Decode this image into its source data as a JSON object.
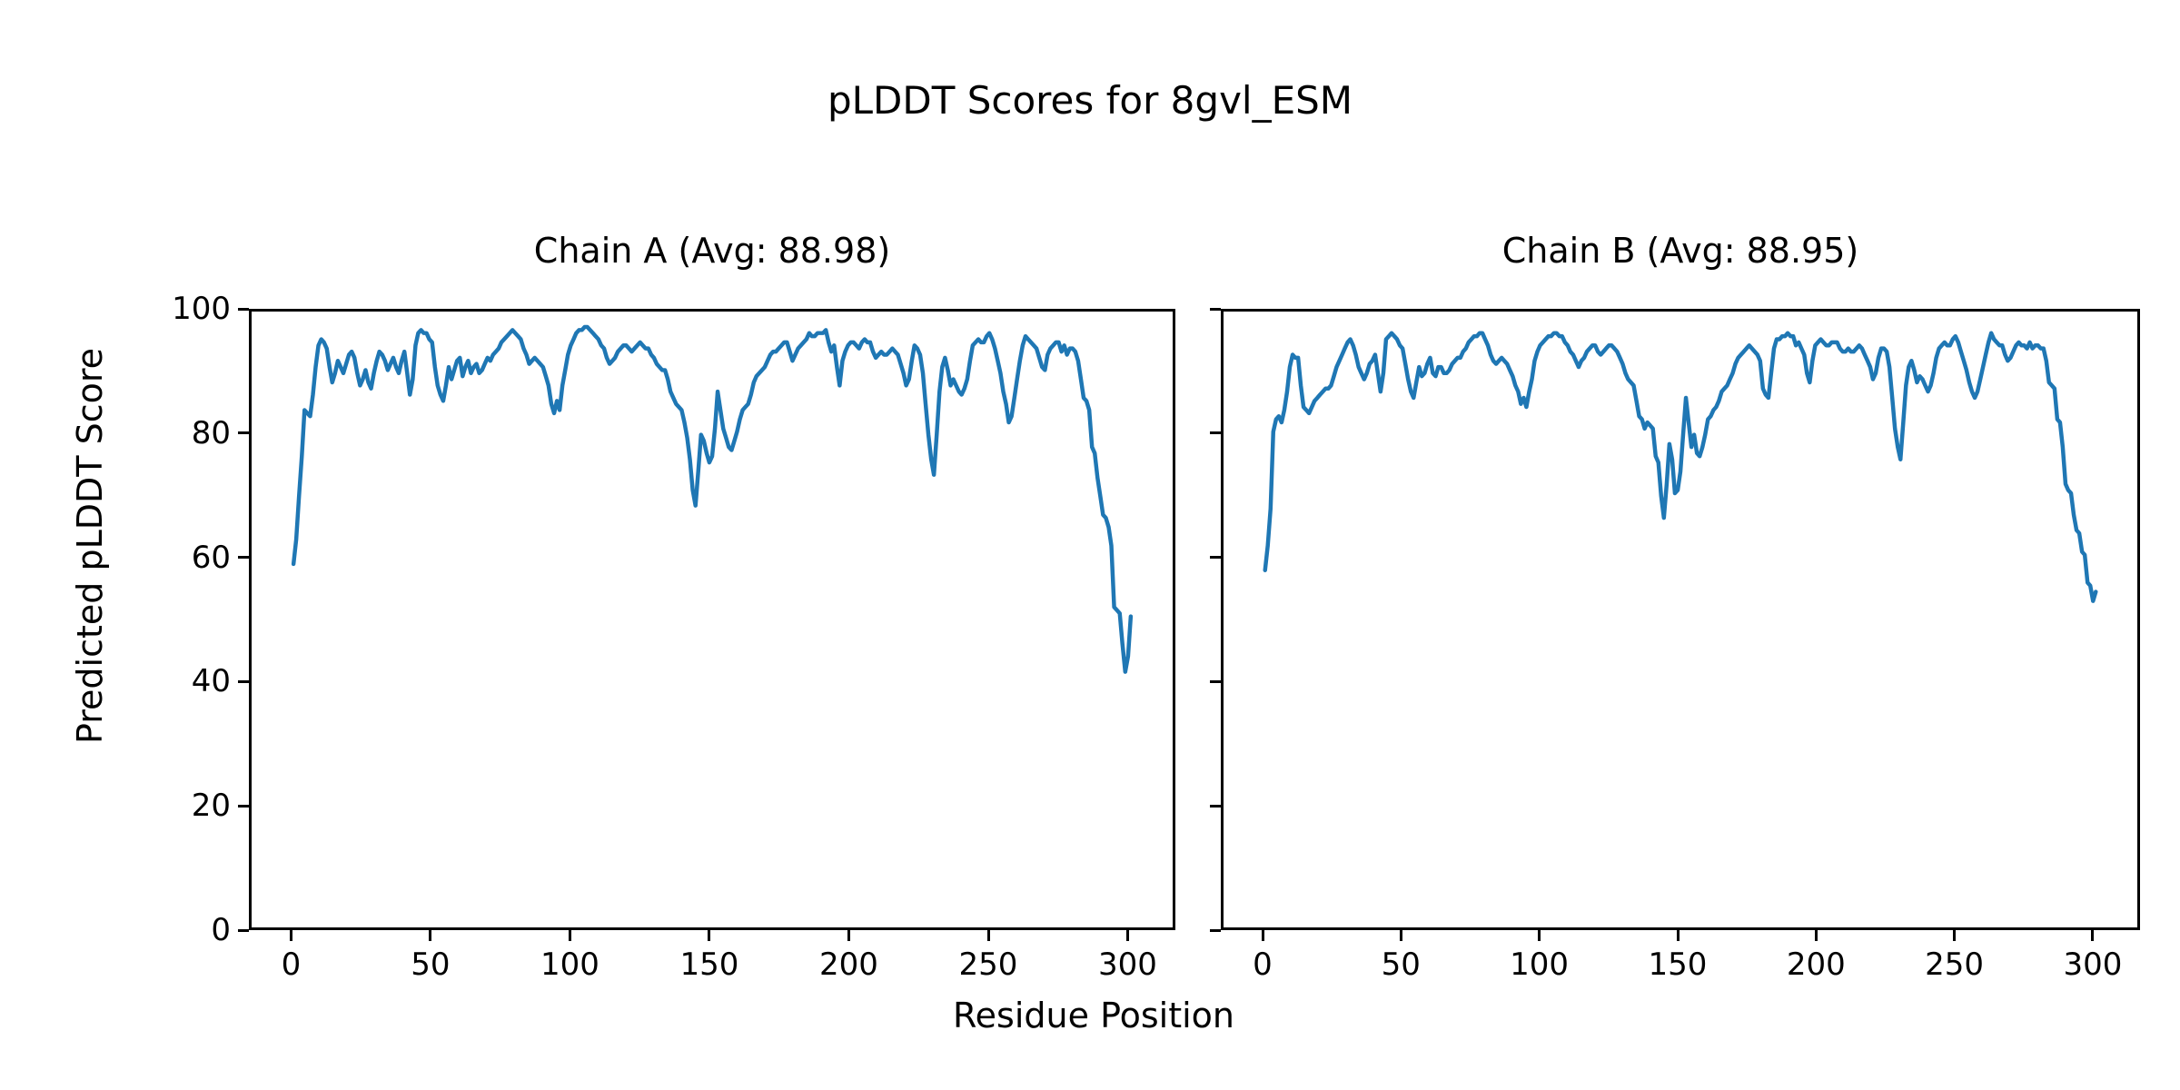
{
  "figure": {
    "suptitle": "pLDDT Scores for 8gvl_ESM",
    "xlabel": "Residue Position",
    "ylabel": "Predicted pLDDT Score",
    "background": "#ffffff",
    "text_color": "#000000",
    "line_color": "#1f77b4"
  },
  "chart_data": [
    {
      "type": "line",
      "title": "Chain A (Avg: 88.98)",
      "chain": "A",
      "avg": 88.98,
      "xlabel": "Residue Position",
      "ylabel": "Predicted pLDDT Score",
      "xticks": [
        0,
        50,
        100,
        150,
        200,
        250,
        300
      ],
      "yticks": [
        0,
        20,
        40,
        60,
        80,
        100
      ],
      "xlim": [
        -15.1,
        317.1
      ],
      "ylim": [
        0,
        100
      ],
      "grid": false,
      "legend": "none",
      "show_ytick_labels": true,
      "series": [
        {
          "name": "Chain A pLDDT",
          "color": "#1f77b4",
          "x_start": 0,
          "x_step": 1,
          "values": [
            59,
            63,
            70,
            76.5,
            84,
            83.5,
            83,
            86.5,
            91,
            94.5,
            95.5,
            95,
            94,
            91,
            88.5,
            90,
            92,
            91,
            90,
            91.5,
            93,
            93.5,
            92.5,
            90,
            88,
            89,
            90.5,
            88.5,
            87.5,
            90,
            92,
            93.5,
            93,
            92,
            90.5,
            91.5,
            92.5,
            91,
            90,
            92,
            93.5,
            90,
            86.5,
            89,
            94.5,
            96.5,
            97,
            96.5,
            96.5,
            95.5,
            95,
            91,
            88,
            86.5,
            85.5,
            88,
            91,
            89,
            90.5,
            92,
            92.5,
            89.5,
            91,
            92,
            90,
            91,
            91.5,
            90,
            90.5,
            91.5,
            92.5,
            92,
            93,
            93.5,
            94,
            95,
            95.5,
            96,
            96.5,
            97,
            96.5,
            96,
            95.5,
            94,
            93,
            91.5,
            92,
            92.5,
            92,
            91.5,
            91,
            89.5,
            88,
            85,
            83.5,
            85.5,
            84,
            88,
            90.5,
            93,
            94.5,
            95.5,
            96.5,
            97,
            97,
            97.5,
            97.5,
            97,
            96.5,
            96,
            95.5,
            94.5,
            94,
            92.5,
            91.5,
            92,
            92.5,
            93.5,
            94,
            94.5,
            94.5,
            94,
            93.5,
            94,
            94.5,
            95,
            94.5,
            94,
            94,
            93,
            92.5,
            91.5,
            91,
            90.5,
            90.5,
            89,
            87,
            86,
            85,
            84.5,
            84,
            82,
            79.5,
            76,
            71,
            68.5,
            74,
            80,
            79,
            77,
            75.5,
            76.5,
            81,
            87,
            84,
            81,
            79.5,
            78,
            77.5,
            79,
            80.5,
            82.5,
            84,
            84.5,
            85,
            86.5,
            88.5,
            89.5,
            90,
            90.5,
            91,
            92,
            93,
            93.5,
            93.5,
            94,
            94.5,
            95,
            95,
            93.5,
            92,
            93,
            94,
            94.5,
            95,
            95.5,
            96.5,
            96,
            96,
            96.5,
            96.5,
            96.5,
            97,
            95,
            93.5,
            94.5,
            91,
            88,
            92,
            93.5,
            94.5,
            95,
            95,
            94.5,
            94,
            95,
            95.5,
            95,
            95,
            93.5,
            92.5,
            93,
            93.5,
            93,
            93,
            93.5,
            94,
            93.5,
            93,
            91.5,
            90,
            88,
            89,
            92,
            94.5,
            94,
            93,
            90,
            85,
            80,
            76,
            73.5,
            80,
            87,
            91,
            92.5,
            90.5,
            88,
            89,
            88,
            87,
            86.5,
            87.5,
            89,
            92,
            94.5,
            95,
            95.5,
            95,
            95,
            96,
            96.5,
            95.5,
            94,
            92,
            90,
            87,
            85,
            82,
            83,
            86,
            89,
            92,
            94.5,
            96,
            95.5,
            95,
            94.5,
            94,
            92.5,
            91,
            90.5,
            93,
            94,
            94.5,
            95,
            95,
            93.5,
            94.5,
            93,
            94,
            94,
            93.5,
            92,
            89,
            86,
            85.5,
            84,
            78,
            77,
            73,
            70,
            67,
            66.5,
            65,
            62,
            52,
            51.5,
            51,
            46,
            41.5,
            44,
            50.5
          ]
        }
      ]
    },
    {
      "type": "line",
      "title": "Chain B (Avg: 88.95)",
      "chain": "B",
      "avg": 88.95,
      "xlabel": "Residue Position",
      "ylabel": "Predicted pLDDT Score",
      "xticks": [
        0,
        50,
        100,
        150,
        200,
        250,
        300
      ],
      "yticks": [
        0,
        20,
        40,
        60,
        80,
        100
      ],
      "xlim": [
        -15.1,
        317.1
      ],
      "ylim": [
        0,
        100
      ],
      "grid": false,
      "legend": "none",
      "show_ytick_labels": false,
      "series": [
        {
          "name": "Chain B pLDDT",
          "color": "#1f77b4",
          "x_start": 0,
          "x_step": 1,
          "values": [
            58,
            62,
            68,
            80.5,
            82.5,
            83,
            82,
            84,
            87,
            91,
            93,
            92.5,
            92.5,
            88,
            84.5,
            84,
            83.5,
            84.5,
            85.5,
            86,
            86.5,
            87,
            87.5,
            87.5,
            88,
            89.5,
            91,
            92,
            93,
            94,
            95,
            95.5,
            94.5,
            93,
            91,
            90,
            89,
            90,
            91.5,
            92,
            93,
            90,
            87,
            90,
            95.5,
            96,
            96.5,
            96,
            95.5,
            94.5,
            94,
            91.5,
            89,
            87,
            86,
            88.5,
            91,
            89.5,
            90,
            91.5,
            92.5,
            90,
            89.5,
            91,
            91,
            90,
            90,
            90.5,
            91.5,
            92,
            92.5,
            92.5,
            93.5,
            94,
            95,
            95.5,
            96,
            96,
            96.5,
            96.5,
            95.5,
            94.5,
            93,
            92,
            91.5,
            92,
            92.5,
            92,
            91.5,
            90.5,
            89.5,
            88,
            87,
            85,
            86,
            84.5,
            87,
            89,
            92,
            93.5,
            94.5,
            95,
            95.5,
            96,
            96,
            96.5,
            96.5,
            96,
            96,
            95,
            94.5,
            93.5,
            93,
            92,
            91,
            92,
            92.5,
            93.5,
            94,
            94.5,
            94.5,
            93.5,
            93,
            93.5,
            94,
            94.5,
            94.5,
            94,
            93.5,
            92.5,
            91.5,
            90,
            89,
            88.5,
            88,
            85.5,
            83,
            82.5,
            81,
            82,
            81.5,
            81,
            76.5,
            75.5,
            70,
            66.5,
            72,
            78.5,
            76,
            70.5,
            71,
            74,
            80,
            86,
            82,
            78,
            80,
            77,
            76.5,
            78,
            80,
            82.5,
            83,
            84,
            84.5,
            85.5,
            87,
            87.5,
            88,
            89,
            90,
            91.5,
            92.5,
            93,
            93.5,
            94,
            94.5,
            94,
            93.5,
            93,
            92,
            87.5,
            86.5,
            86,
            90,
            94,
            95.5,
            95.5,
            96,
            96,
            96.5,
            96,
            96,
            94.5,
            95,
            94,
            93,
            90,
            88.5,
            92,
            94.5,
            95,
            95.5,
            95,
            94.5,
            94.5,
            95,
            95,
            95,
            94,
            93.5,
            93.5,
            94,
            93.5,
            93.5,
            94,
            94.5,
            94,
            93,
            92,
            91,
            89,
            90,
            92.5,
            94,
            94,
            93.5,
            91,
            86,
            81,
            78,
            76,
            82,
            88,
            91,
            92,
            90.5,
            88.5,
            89.5,
            89,
            88,
            87,
            88,
            90,
            92.5,
            94,
            94.5,
            95,
            94.5,
            94.5,
            95.5,
            96,
            95,
            93.5,
            92,
            90.5,
            88.5,
            87,
            86,
            87,
            89,
            91,
            93,
            95,
            96.5,
            95.5,
            95,
            94.5,
            94.5,
            93,
            92,
            92.5,
            93.5,
            94.5,
            95,
            94.5,
            94.5,
            94,
            95,
            94,
            94.5,
            94.5,
            94,
            94,
            92,
            88.5,
            88,
            87.5,
            82.5,
            82,
            78,
            72,
            71,
            70.5,
            67,
            64.5,
            64,
            61,
            60.5,
            56,
            55.5,
            53,
            54.5
          ]
        }
      ]
    }
  ]
}
